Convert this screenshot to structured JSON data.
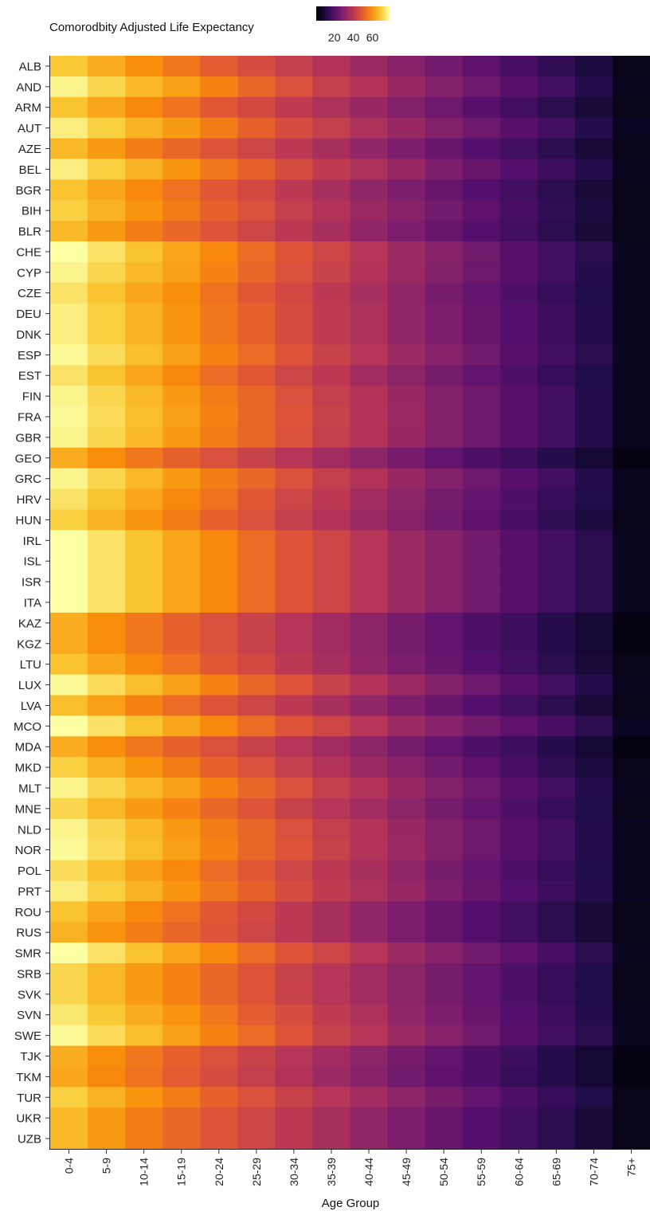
{
  "chart_data": {
    "type": "heatmap",
    "title": "",
    "legend": {
      "title": "Comorodbity Adjusted Life Expectancy",
      "ticks": [
        20,
        40,
        60
      ],
      "placement": "top",
      "colormap": "inferno",
      "range": [
        1,
        78
      ]
    },
    "xlabel": "Age Group",
    "ylabel": "",
    "x_categories": [
      "0-4",
      "5-9",
      "10-14",
      "15-19",
      "20-24",
      "25-29",
      "30-34",
      "35-39",
      "40-44",
      "45-49",
      "50-54",
      "55-59",
      "60-64",
      "65-69",
      "70-74",
      "75+"
    ],
    "y_categories": [
      "ALB",
      "AND",
      "ARM",
      "AUT",
      "AZE",
      "BEL",
      "BGR",
      "BIH",
      "BLR",
      "CHE",
      "CYP",
      "CZE",
      "DEU",
      "DNK",
      "ESP",
      "EST",
      "FIN",
      "FRA",
      "GBR",
      "GEO",
      "GRC",
      "HRV",
      "HUN",
      "IRL",
      "ISL",
      "ISR",
      "ITA",
      "KAZ",
      "KGZ",
      "LTU",
      "LUX",
      "LVA",
      "MCO",
      "MDA",
      "MKD",
      "MLT",
      "MNE",
      "NLD",
      "NOR",
      "POL",
      "PRT",
      "ROU",
      "RUS",
      "SMR",
      "SRB",
      "SVK",
      "SVN",
      "SWE",
      "TJK",
      "TKM",
      "TUR",
      "UKR",
      "UZB"
    ],
    "values": [
      [
        69,
        64,
        59,
        55,
        50,
        46,
        42,
        38,
        34,
        30,
        26,
        22,
        18,
        14,
        10,
        4
      ],
      [
        76,
        71,
        66,
        62,
        57,
        52,
        47,
        42,
        38,
        33,
        29,
        25,
        21,
        17,
        12,
        5
      ],
      [
        68,
        63,
        58,
        54,
        49,
        45,
        41,
        37,
        33,
        29,
        25,
        21,
        17,
        13,
        9,
        4
      ],
      [
        75,
        70,
        65,
        61,
        56,
        51,
        46,
        42,
        37,
        33,
        29,
        25,
        21,
        17,
        12,
        5
      ],
      [
        66,
        61,
        56,
        52,
        48,
        44,
        40,
        36,
        32,
        28,
        24,
        20,
        17,
        13,
        9,
        4
      ],
      [
        75,
        70,
        65,
        60,
        55,
        51,
        46,
        41,
        37,
        33,
        28,
        24,
        20,
        16,
        12,
        5
      ],
      [
        68,
        63,
        58,
        54,
        49,
        45,
        40,
        36,
        32,
        28,
        24,
        20,
        17,
        13,
        9,
        4
      ],
      [
        70,
        65,
        60,
        56,
        51,
        47,
        42,
        38,
        34,
        30,
        26,
        22,
        18,
        14,
        10,
        4
      ],
      [
        66,
        61,
        56,
        52,
        48,
        44,
        40,
        36,
        32,
        28,
        24,
        20,
        17,
        13,
        9,
        4
      ],
      [
        78,
        73,
        68,
        63,
        58,
        53,
        48,
        44,
        39,
        34,
        30,
        26,
        21,
        17,
        13,
        5
      ],
      [
        76,
        71,
        66,
        62,
        57,
        52,
        47,
        43,
        38,
        34,
        29,
        25,
        21,
        17,
        12,
        5
      ],
      [
        73,
        68,
        63,
        59,
        54,
        49,
        45,
        40,
        36,
        32,
        27,
        23,
        19,
        15,
        11,
        5
      ],
      [
        75,
        70,
        65,
        60,
        55,
        51,
        46,
        41,
        37,
        32,
        28,
        24,
        20,
        16,
        12,
        5
      ],
      [
        75,
        70,
        65,
        60,
        55,
        51,
        46,
        41,
        37,
        32,
        28,
        24,
        20,
        16,
        12,
        5
      ],
      [
        77,
        72,
        67,
        62,
        57,
        53,
        48,
        43,
        39,
        34,
        30,
        26,
        21,
        17,
        13,
        5
      ],
      [
        73,
        68,
        63,
        58,
        53,
        49,
        44,
        40,
        35,
        31,
        27,
        23,
        19,
        15,
        11,
        5
      ],
      [
        76,
        71,
        66,
        61,
        56,
        52,
        47,
        42,
        38,
        33,
        29,
        25,
        21,
        17,
        12,
        5
      ],
      [
        77,
        72,
        67,
        62,
        57,
        52,
        48,
        43,
        38,
        34,
        29,
        25,
        21,
        17,
        12,
        5
      ],
      [
        76,
        71,
        66,
        61,
        56,
        52,
        47,
        42,
        38,
        33,
        29,
        25,
        21,
        17,
        12,
        5
      ],
      [
        64,
        59,
        55,
        51,
        47,
        43,
        39,
        35,
        31,
        27,
        23,
        19,
        16,
        12,
        8,
        3
      ],
      [
        76,
        71,
        66,
        61,
        56,
        52,
        47,
        42,
        38,
        33,
        29,
        25,
        21,
        17,
        12,
        5
      ],
      [
        73,
        68,
        63,
        58,
        54,
        49,
        44,
        40,
        35,
        31,
        27,
        23,
        19,
        15,
        11,
        5
      ],
      [
        70,
        65,
        60,
        56,
        51,
        47,
        42,
        38,
        34,
        30,
        26,
        22,
        18,
        14,
        10,
        4
      ],
      [
        78,
        73,
        68,
        63,
        58,
        53,
        48,
        44,
        39,
        34,
        30,
        26,
        21,
        17,
        13,
        5
      ],
      [
        78,
        73,
        68,
        63,
        58,
        53,
        48,
        44,
        39,
        34,
        30,
        26,
        21,
        17,
        13,
        5
      ],
      [
        78,
        73,
        68,
        63,
        58,
        53,
        48,
        44,
        39,
        34,
        30,
        26,
        21,
        17,
        13,
        5
      ],
      [
        78,
        73,
        68,
        63,
        58,
        53,
        48,
        44,
        39,
        34,
        30,
        26,
        21,
        17,
        13,
        5
      ],
      [
        64,
        59,
        55,
        51,
        47,
        43,
        39,
        35,
        31,
        27,
        23,
        19,
        16,
        12,
        8,
        3
      ],
      [
        64,
        59,
        55,
        51,
        47,
        43,
        39,
        35,
        31,
        27,
        23,
        19,
        16,
        12,
        8,
        3
      ],
      [
        68,
        63,
        58,
        54,
        49,
        45,
        40,
        36,
        32,
        28,
        24,
        20,
        17,
        13,
        9,
        4
      ],
      [
        77,
        72,
        67,
        62,
        57,
        52,
        48,
        43,
        38,
        34,
        29,
        25,
        21,
        17,
        12,
        5
      ],
      [
        67,
        62,
        57,
        53,
        48,
        44,
        40,
        36,
        32,
        28,
        24,
        20,
        17,
        13,
        9,
        4
      ],
      [
        78,
        73,
        68,
        63,
        58,
        53,
        48,
        44,
        39,
        34,
        30,
        26,
        22,
        18,
        13,
        5
      ],
      [
        64,
        59,
        55,
        51,
        47,
        43,
        39,
        35,
        31,
        27,
        23,
        19,
        16,
        12,
        8,
        3
      ],
      [
        70,
        65,
        60,
        56,
        51,
        47,
        42,
        38,
        34,
        30,
        26,
        22,
        18,
        14,
        10,
        4
      ],
      [
        76,
        71,
        66,
        62,
        57,
        52,
        47,
        42,
        38,
        33,
        29,
        25,
        21,
        17,
        12,
        5
      ],
      [
        71,
        66,
        61,
        57,
        52,
        48,
        43,
        39,
        35,
        31,
        27,
        23,
        19,
        15,
        11,
        4
      ],
      [
        76,
        71,
        66,
        61,
        56,
        52,
        47,
        42,
        38,
        33,
        29,
        25,
        21,
        17,
        12,
        5
      ],
      [
        77,
        72,
        67,
        62,
        57,
        52,
        48,
        43,
        38,
        34,
        29,
        25,
        21,
        17,
        12,
        5
      ],
      [
        72,
        67,
        62,
        58,
        53,
        49,
        44,
        40,
        36,
        32,
        27,
        23,
        19,
        15,
        11,
        5
      ],
      [
        75,
        70,
        65,
        60,
        55,
        51,
        46,
        41,
        37,
        33,
        28,
        24,
        20,
        16,
        12,
        5
      ],
      [
        68,
        63,
        58,
        54,
        49,
        45,
        40,
        36,
        32,
        28,
        24,
        20,
        17,
        13,
        9,
        4
      ],
      [
        65,
        60,
        56,
        52,
        48,
        44,
        40,
        36,
        32,
        28,
        24,
        20,
        17,
        13,
        9,
        4
      ],
      [
        78,
        73,
        68,
        63,
        58,
        53,
        48,
        44,
        39,
        34,
        30,
        26,
        22,
        18,
        13,
        5
      ],
      [
        71,
        66,
        61,
        57,
        52,
        48,
        43,
        39,
        35,
        31,
        27,
        23,
        19,
        15,
        11,
        4
      ],
      [
        71,
        66,
        61,
        57,
        52,
        48,
        43,
        39,
        35,
        31,
        27,
        23,
        19,
        15,
        11,
        4
      ],
      [
        74,
        69,
        64,
        60,
        55,
        50,
        46,
        41,
        37,
        32,
        28,
        24,
        20,
        16,
        12,
        5
      ],
      [
        77,
        72,
        67,
        62,
        57,
        53,
        48,
        43,
        39,
        34,
        30,
        26,
        21,
        17,
        13,
        5
      ],
      [
        64,
        59,
        55,
        51,
        47,
        43,
        39,
        35,
        31,
        27,
        23,
        19,
        16,
        12,
        8,
        3
      ],
      [
        63,
        58,
        54,
        50,
        46,
        42,
        38,
        34,
        30,
        26,
        22,
        19,
        15,
        12,
        8,
        3
      ],
      [
        70,
        65,
        60,
        56,
        51,
        47,
        43,
        39,
        35,
        31,
        27,
        23,
        19,
        15,
        11,
        4
      ],
      [
        66,
        61,
        56,
        52,
        48,
        44,
        40,
        36,
        32,
        28,
        24,
        20,
        17,
        13,
        9,
        4
      ],
      [
        66,
        61,
        56,
        52,
        48,
        44,
        40,
        36,
        32,
        28,
        24,
        20,
        17,
        13,
        9,
        4
      ]
    ]
  }
}
